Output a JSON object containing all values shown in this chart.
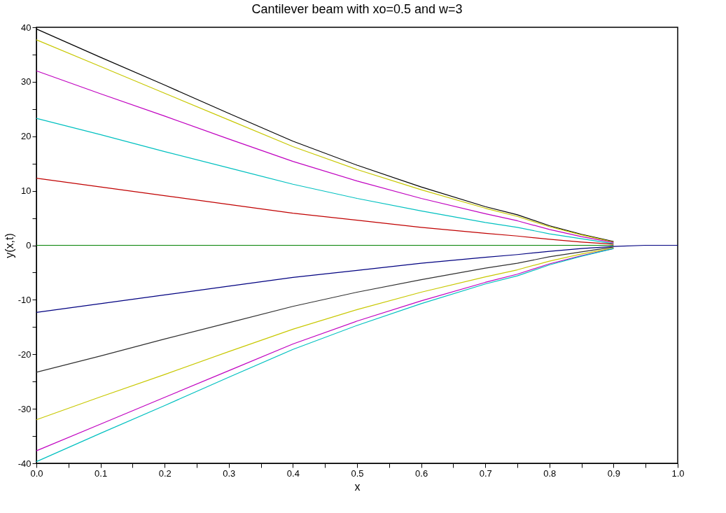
{
  "chart_data": {
    "type": "line",
    "title": "Cantilever beam with xo=0.5 and w=3",
    "xlabel": "x",
    "ylabel": "y(x,t)",
    "x": [
      0,
      0.1,
      0.2,
      0.3,
      0.4,
      0.5,
      0.6,
      0.7,
      0.75,
      0.8,
      0.85,
      0.9,
      0.95,
      1.0
    ],
    "series": [
      {
        "color": "#000000",
        "values": [
          39.7,
          34.5,
          29.4,
          24.2,
          19.1,
          14.7,
          10.7,
          7.1,
          5.6,
          3.6,
          2.0,
          0.7,
          null,
          null
        ]
      },
      {
        "color": "#c8c800",
        "values": [
          37.7,
          32.8,
          27.9,
          23.0,
          18.1,
          13.9,
          10.2,
          6.8,
          5.3,
          3.4,
          1.9,
          0.6,
          null,
          null
        ]
      },
      {
        "color": "#c000c0",
        "values": [
          32,
          27.8,
          23.7,
          19.5,
          15.4,
          11.8,
          8.6,
          5.8,
          4.5,
          2.9,
          1.6,
          0.5,
          null,
          null
        ]
      },
      {
        "color": "#00c0c0",
        "values": [
          23.3,
          20.3,
          17.2,
          14.2,
          11.2,
          8.6,
          6.3,
          4.2,
          3.3,
          2.1,
          1.2,
          0.3,
          null,
          null
        ]
      },
      {
        "color": "#c00000",
        "values": [
          12.3,
          10.7,
          9.1,
          7.5,
          5.9,
          4.6,
          3.3,
          2.2,
          1.7,
          1.1,
          0.6,
          0.2,
          null,
          null
        ]
      },
      {
        "color": "#008000",
        "values": [
          0,
          0,
          0,
          0,
          0,
          0,
          0,
          0,
          0,
          0,
          0,
          0,
          null,
          null
        ]
      },
      {
        "color": "#000080",
        "values": [
          -12.3,
          -10.7,
          -9.1,
          -7.5,
          -5.9,
          -4.6,
          -3.3,
          -2.2,
          -1.7,
          -1.1,
          -0.6,
          -0.2,
          0,
          0
        ]
      },
      {
        "color": "#303030",
        "values": [
          -23.3,
          -20.3,
          -17.2,
          -14.2,
          -11.2,
          -8.6,
          -6.3,
          -4.2,
          -3.3,
          -2.1,
          -1.2,
          -0.3,
          null,
          null
        ]
      },
      {
        "color": "#c8c800",
        "values": [
          -32,
          -27.8,
          -23.7,
          -19.5,
          -15.4,
          -11.8,
          -8.6,
          -5.8,
          -4.5,
          -2.9,
          -1.6,
          -0.5,
          null,
          null
        ]
      },
      {
        "color": "#c000c0",
        "values": [
          -37.7,
          -32.8,
          -27.9,
          -23.0,
          -18.1,
          -13.9,
          -10.2,
          -6.8,
          -5.3,
          -3.4,
          -1.9,
          -0.6,
          null,
          null
        ]
      },
      {
        "color": "#00c0c0",
        "values": [
          -39.7,
          -34.5,
          -29.4,
          -24.2,
          -19.1,
          -14.7,
          -10.7,
          -7.1,
          -5.6,
          -3.6,
          -2.0,
          -0.6,
          null,
          null
        ]
      }
    ],
    "xlim": [
      0,
      1
    ],
    "xticks": [
      {
        "value": 0,
        "label": "0.0"
      },
      {
        "value": 0.05,
        "label": null
      },
      0.1,
      {
        "value": 0.15,
        "label": null
      },
      0.2,
      {
        "value": 0.25,
        "label": null
      },
      0.3,
      {
        "value": 0.35,
        "label": null
      },
      0.4,
      {
        "value": 0.45,
        "label": null
      },
      0.5,
      {
        "value": 0.55,
        "label": null
      },
      0.6,
      {
        "value": 0.65,
        "label": null
      },
      0.7,
      {
        "value": 0.75,
        "label": null
      },
      0.8,
      {
        "value": 0.85,
        "label": null
      },
      0.9,
      {
        "value": 0.95,
        "label": null
      },
      {
        "value": 1,
        "label": "1.0"
      }
    ],
    "ylim": [
      -40,
      40
    ],
    "yticks": [
      -40,
      {
        "value": -35,
        "label": null
      },
      -30,
      {
        "value": -25,
        "label": null
      },
      -20,
      {
        "value": -15,
        "label": null
      },
      -10,
      {
        "value": -5,
        "label": null
      },
      0,
      {
        "value": 5,
        "label": null
      },
      10,
      {
        "value": 15,
        "label": null
      },
      20,
      {
        "value": 25,
        "label": null
      },
      30,
      {
        "value": 35,
        "label": null
      },
      40
    ],
    "grid": false,
    "legend": false,
    "line_style": "solid"
  }
}
